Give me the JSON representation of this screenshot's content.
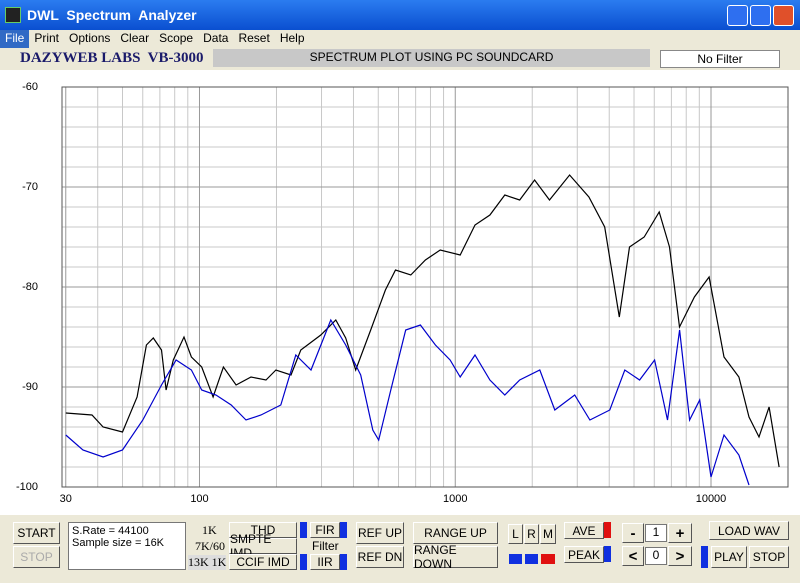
{
  "window": {
    "title": "DWL  Spectrum  Analyzer"
  },
  "menu": [
    "File",
    "Print",
    "Options",
    "Clear",
    "Scope",
    "Data",
    "Reset",
    "Help"
  ],
  "header": {
    "brand": "DAZYWEB LABS  VB-3000",
    "banner": "SPECTRUM PLOT USING PC SOUNDCARD",
    "filter": "No Filter"
  },
  "chart_data": {
    "type": "line",
    "xscale": "log",
    "grid": true,
    "xlim": [
      29,
      20000
    ],
    "ylim": [
      -100,
      -60
    ],
    "xticks": [
      30,
      100,
      1000,
      10000
    ],
    "yticks": [
      -60,
      -70,
      -80,
      -90,
      -100
    ],
    "xminor": [
      40,
      50,
      60,
      70,
      80,
      90,
      200,
      300,
      400,
      500,
      600,
      700,
      800,
      900,
      2000,
      3000,
      4000,
      5000,
      6000,
      7000,
      8000,
      9000,
      20000
    ],
    "yminor": [
      -62,
      -64,
      -66,
      -68,
      -72,
      -74,
      -76,
      -78,
      -82,
      -84,
      -86,
      -88,
      -92,
      -94,
      -96,
      -98
    ],
    "series": [
      {
        "color": "#000000",
        "x": [
          30,
          38,
          42,
          50,
          57,
          62,
          66,
          71,
          74,
          79,
          87,
          93,
          102,
          113,
          124,
          139,
          159,
          182,
          199,
          228,
          249,
          298,
          341,
          373,
          408,
          467,
          533,
          584,
          670,
          764,
          873,
          1046,
          1195,
          1366,
          1562,
          1786,
          2043,
          2337,
          2800,
          3330,
          3840,
          4380,
          4800,
          5480,
          6270,
          6880,
          7530,
          8610,
          9830,
          11240,
          12850,
          14080,
          15400,
          16870,
          18460
        ],
        "values": [
          -92.6,
          -92.8,
          -94,
          -94.5,
          -91,
          -85.8,
          -85.1,
          -86.3,
          -90.3,
          -87.3,
          -85,
          -87,
          -88,
          -91,
          -88,
          -89.8,
          -89,
          -89.3,
          -88.3,
          -88.8,
          -86.3,
          -84.8,
          -83.3,
          -85.1,
          -88.3,
          -84.3,
          -80.3,
          -78.3,
          -78.8,
          -77.3,
          -76.3,
          -76.8,
          -73.8,
          -72.8,
          -70.8,
          -71.3,
          -69.3,
          -71.3,
          -68.8,
          -71,
          -74,
          -83,
          -76,
          -75,
          -72.5,
          -76,
          -84,
          -81,
          -79,
          -87,
          -89,
          -93,
          -95,
          -92,
          -98
        ]
      },
      {
        "color": "#0000cc",
        "x": [
          30,
          35,
          42,
          50,
          60,
          71,
          81,
          93,
          102,
          116,
          133,
          152,
          174,
          208,
          238,
          273,
          326,
          373,
          427,
          476,
          502,
          560,
          640,
          731,
          836,
          955,
          1046,
          1195,
          1366,
          1562,
          1786,
          2140,
          2450,
          2930,
          3360,
          4020,
          4600,
          5260,
          6020,
          6760,
          7540,
          8250,
          9030,
          10000,
          11240,
          12850,
          14080
        ],
        "values": [
          -94.8,
          -96.3,
          -97,
          -96.3,
          -93.3,
          -89.8,
          -87.3,
          -88.3,
          -90.3,
          -90.8,
          -91.8,
          -93.3,
          -92.8,
          -91.8,
          -86.8,
          -88.3,
          -83.3,
          -85.8,
          -88.8,
          -94.3,
          -95.3,
          -90.3,
          -84.3,
          -83.8,
          -85.8,
          -87.3,
          -89,
          -86.8,
          -89.3,
          -90.8,
          -89.3,
          -88.3,
          -92.3,
          -90.8,
          -93.3,
          -92.3,
          -88.3,
          -89.3,
          -87.3,
          -93.3,
          -84.3,
          -93.3,
          -91.3,
          -99,
          -94.8,
          -96.8,
          -99.8
        ]
      }
    ]
  },
  "controls": {
    "start": "START",
    "stop": "STOP",
    "status": [
      "S.Rate = 44100",
      "Sample size = 16K"
    ],
    "modes": [
      "1K",
      "7K/60",
      "13K 1K"
    ],
    "thd": "THD",
    "smpte": "SMPTE IMD",
    "ccif": "CCIF IMD",
    "fir": "FIR",
    "filter": "Filter",
    "iir": "IIR",
    "ref_up": "REF UP",
    "ref_dn": "REF DN",
    "range_up": "RANGE UP",
    "range_down": "RANGE DOWN",
    "channels": [
      "L",
      "R",
      "M"
    ],
    "ave": "AVE",
    "peak": "PEAK",
    "minus": "-",
    "plus": "+",
    "prev": "<",
    "next": ">",
    "count_a": 1,
    "count_b": 0,
    "load": "LOAD WAV",
    "play": "PLAY",
    "stop2": "STOP"
  }
}
